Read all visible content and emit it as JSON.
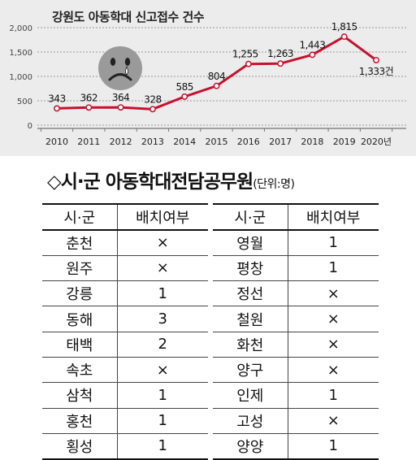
{
  "chart_data": {
    "type": "line",
    "title": "강원도 아동학대 신고접수 건수",
    "x": [
      "2010",
      "2011",
      "2012",
      "2013",
      "2014",
      "2015",
      "2016",
      "2017",
      "2018",
      "2019",
      "2020년"
    ],
    "values": [
      343,
      362,
      364,
      328,
      585,
      804,
      1255,
      1263,
      1443,
      1815,
      1333
    ],
    "data_labels": [
      "343",
      "362",
      "364",
      "328",
      "585",
      "804",
      "1,255",
      "1,263",
      "1,443",
      "1,815",
      "1,333건"
    ],
    "y_ticks": [
      "0",
      "500",
      "1,000",
      "1,500",
      "2,000"
    ],
    "ylim": [
      0,
      2000
    ],
    "grid": "horizontal-dashed",
    "line_color": "#c8102e",
    "background": "#ececec"
  },
  "decoration": {
    "icon": "sad-face-icon"
  },
  "section": {
    "title": "◇시·군 아동학대전담공무원",
    "unit": "(단위:명)"
  },
  "table_left": {
    "headers": [
      "시·군",
      "배치여부"
    ],
    "rows": [
      [
        "춘천",
        "×"
      ],
      [
        "원주",
        "×"
      ],
      [
        "강릉",
        "1"
      ],
      [
        "동해",
        "3"
      ],
      [
        "태백",
        "2"
      ],
      [
        "속초",
        "×"
      ],
      [
        "삼척",
        "1"
      ],
      [
        "홍천",
        "1"
      ],
      [
        "횡성",
        "1"
      ]
    ]
  },
  "table_right": {
    "headers": [
      "시·군",
      "배치여부"
    ],
    "rows": [
      [
        "영월",
        "1"
      ],
      [
        "평창",
        "1"
      ],
      [
        "정선",
        "×"
      ],
      [
        "철원",
        "×"
      ],
      [
        "화천",
        "×"
      ],
      [
        "양구",
        "×"
      ],
      [
        "인제",
        "1"
      ],
      [
        "고성",
        "×"
      ],
      [
        "양양",
        "1"
      ]
    ]
  }
}
